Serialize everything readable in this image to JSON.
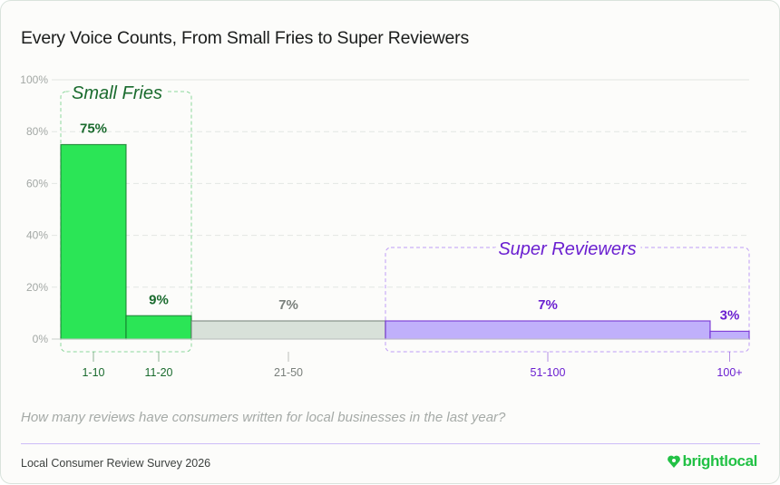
{
  "title": "Every Voice Counts, From Small Fries to Super Reviewers",
  "question": "How many reviews have consumers written for local businesses in the last year?",
  "footer": "Local Consumer Review Survey 2026",
  "brand": "brightlocal",
  "chart_data": {
    "type": "bar",
    "categories": [
      "1-10",
      "11-20",
      "21-50",
      "51-100",
      "100+"
    ],
    "values": [
      75,
      9,
      7,
      7,
      3
    ],
    "data_labels": [
      "75%",
      "9%",
      "7%",
      "7%",
      "3%"
    ],
    "ylim": [
      0,
      100
    ],
    "yticks": [
      "0%",
      "20%",
      "40%",
      "60%",
      "80%",
      "100%"
    ],
    "grid": true,
    "groups": [
      {
        "label": "Small Fries",
        "categories": [
          "1-10",
          "11-20"
        ],
        "color": "#1a6b2e"
      },
      {
        "label": "Super Reviewers",
        "categories": [
          "51-100",
          "100+"
        ],
        "color": "#6a1fd0"
      }
    ],
    "colors": {
      "small_fries_fill": "#2be556",
      "neutral_fill": "#d8e1d9",
      "super_fill": "#c0b0fb",
      "small_fries_text": "#1a6b2e",
      "neutral_text": "#7a807c",
      "super_text": "#6a1fd0"
    }
  }
}
